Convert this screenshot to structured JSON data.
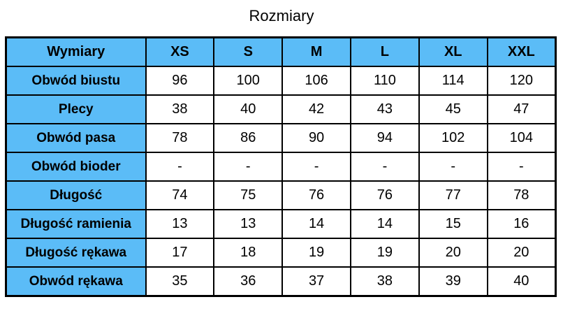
{
  "title": "Rozmiary",
  "header_color": "#5bbcf7",
  "columns": [
    "Wymiary",
    "XS",
    "S",
    "M",
    "L",
    "XL",
    "XXL"
  ],
  "rows": [
    {
      "label": "Obwód biustu",
      "values": [
        "96",
        "100",
        "106",
        "110",
        "114",
        "120"
      ]
    },
    {
      "label": "Plecy",
      "values": [
        "38",
        "40",
        "42",
        "43",
        "45",
        "47"
      ]
    },
    {
      "label": "Obwód pasa",
      "values": [
        "78",
        "86",
        "90",
        "94",
        "102",
        "104"
      ]
    },
    {
      "label": "Obwód bioder",
      "values": [
        "-",
        "-",
        "-",
        "-",
        "-",
        "-"
      ]
    },
    {
      "label": "Długość",
      "values": [
        "74",
        "75",
        "76",
        "76",
        "77",
        "78"
      ]
    },
    {
      "label": "Długość ramienia",
      "values": [
        "13",
        "13",
        "14",
        "14",
        "15",
        "16"
      ]
    },
    {
      "label": "Długość rękawa",
      "values": [
        "17",
        "18",
        "19",
        "19",
        "20",
        "20"
      ]
    },
    {
      "label": "Obwód rękawa",
      "values": [
        "35",
        "36",
        "37",
        "38",
        "39",
        "40"
      ]
    }
  ]
}
